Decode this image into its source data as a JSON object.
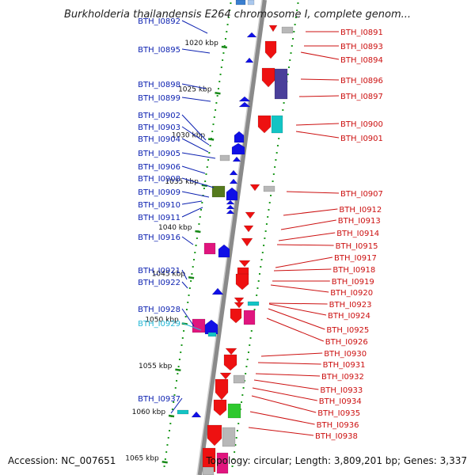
{
  "header": {
    "title": "Burkholderia thailandensis E264 chromosome I, complete genom..."
  },
  "footer": {
    "accession": "Accession: NC_007651",
    "summary": "Topology: circular; Length: 3,809,201 bp; Genes: 3,337"
  },
  "ruler": {
    "ticks": [
      {
        "label": "1020 kbp",
        "value": 1020
      },
      {
        "label": "1025 kbp",
        "value": 1025
      },
      {
        "label": "1030 kbp",
        "value": 1030
      },
      {
        "label": "1035 kbp",
        "value": 1035
      },
      {
        "label": "1040 kbp",
        "value": 1040
      },
      {
        "label": "1045 kbp",
        "value": 1045
      },
      {
        "label": "1050 kbp",
        "value": 1050
      },
      {
        "label": "1055 kbp",
        "value": 1055
      },
      {
        "label": "1060 kbp",
        "value": 1060
      },
      {
        "label": "1065 kbp",
        "value": 1065
      }
    ]
  },
  "colors": {
    "backbone": "#8a8a8a",
    "forward_label": "#0a1fb0",
    "reverse_label": "#cc1010",
    "highlight_label": "#22b8d6",
    "guide_dots": "#1f9a1f",
    "forward_gene": "#1010e6",
    "reverse_gene": "#ee1111",
    "magenta_gene": "#e0157e",
    "grey_gene": "#b8b8b8",
    "cyan_gene": "#13c4c4",
    "green_gene": "#2ec82e",
    "olive_gene": "#557a1e",
    "purple_gene": "#4a3f9a"
  },
  "forward_genes": [
    {
      "label": "BTH_I0892"
    },
    {
      "label": "BTH_I0895"
    },
    {
      "label": "BTH_I0898"
    },
    {
      "label": "BTH_I0899"
    },
    {
      "label": "BTH_I0902"
    },
    {
      "label": "BTH_I0903"
    },
    {
      "label": "BTH_I0904"
    },
    {
      "label": "BTH_I0905"
    },
    {
      "label": "BTH_I0906"
    },
    {
      "label": "BTH_I0908"
    },
    {
      "label": "BTH_I0909"
    },
    {
      "label": "BTH_I0910"
    },
    {
      "label": "BTH_I0911"
    },
    {
      "label": "BTH_I0916"
    },
    {
      "label": "BTH_I0921"
    },
    {
      "label": "BTH_I0922"
    },
    {
      "label": "BTH_I0928"
    },
    {
      "label": "BTH_I0929",
      "highlight": true
    },
    {
      "label": "BTH_I0937"
    }
  ],
  "reverse_genes": [
    {
      "label": "BTH_I0891"
    },
    {
      "label": "BTH_I0893"
    },
    {
      "label": "BTH_I0894"
    },
    {
      "label": "BTH_I0896"
    },
    {
      "label": "BTH_I0897"
    },
    {
      "label": "BTH_I0900"
    },
    {
      "label": "BTH_I0901"
    },
    {
      "label": "BTH_I0907"
    },
    {
      "label": "BTH_I0912"
    },
    {
      "label": "BTH_I0913"
    },
    {
      "label": "BTH_I0914"
    },
    {
      "label": "BTH_I0915"
    },
    {
      "label": "BTH_I0917"
    },
    {
      "label": "BTH_I0918"
    },
    {
      "label": "BTH_I0919"
    },
    {
      "label": "BTH_I0920"
    },
    {
      "label": "BTH_I0923"
    },
    {
      "label": "BTH_I0924"
    },
    {
      "label": "BTH_I0925"
    },
    {
      "label": "BTH_I0926"
    },
    {
      "label": "BTH_I0930"
    },
    {
      "label": "BTH_I0931"
    },
    {
      "label": "BTH_I0932"
    },
    {
      "label": "BTH_I0933"
    },
    {
      "label": "BTH_I0934"
    },
    {
      "label": "BTH_I0935"
    },
    {
      "label": "BTH_I0936"
    },
    {
      "label": "BTH_I0938"
    }
  ]
}
